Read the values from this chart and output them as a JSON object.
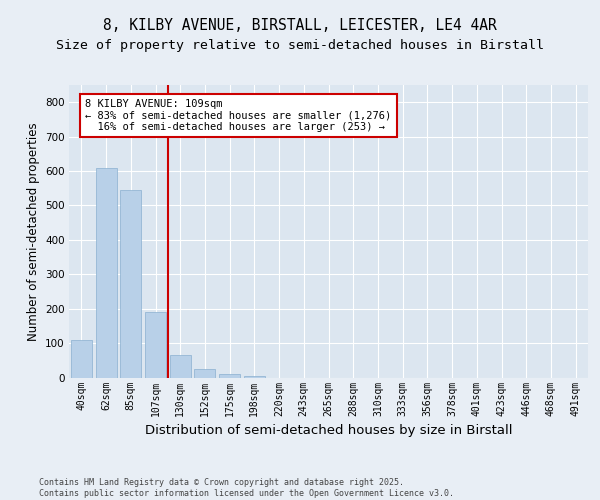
{
  "title1": "8, KILBY AVENUE, BIRSTALL, LEICESTER, LE4 4AR",
  "title2": "Size of property relative to semi-detached houses in Birstall",
  "xlabel": "Distribution of semi-detached houses by size in Birstall",
  "ylabel": "Number of semi-detached properties",
  "categories": [
    "40sqm",
    "62sqm",
    "85sqm",
    "107sqm",
    "130sqm",
    "152sqm",
    "175sqm",
    "198sqm",
    "220sqm",
    "243sqm",
    "265sqm",
    "288sqm",
    "310sqm",
    "333sqm",
    "356sqm",
    "378sqm",
    "401sqm",
    "423sqm",
    "446sqm",
    "468sqm",
    "491sqm"
  ],
  "values": [
    110,
    610,
    545,
    190,
    65,
    25,
    10,
    5,
    0,
    0,
    0,
    0,
    0,
    0,
    0,
    0,
    0,
    0,
    0,
    0,
    0
  ],
  "bar_color": "#b8d0e8",
  "vline_color": "#cc0000",
  "vline_x": 3.5,
  "annotation_line1": "8 KILBY AVENUE: 109sqm",
  "annotation_line2": "← 83% of semi-detached houses are smaller (1,276)",
  "annotation_line3": "  16% of semi-detached houses are larger (253) →",
  "ylim": [
    0,
    850
  ],
  "yticks": [
    0,
    100,
    200,
    300,
    400,
    500,
    600,
    700,
    800
  ],
  "bg_color": "#e8eef5",
  "plot_bg_color": "#dce6f0",
  "grid_color": "#ffffff",
  "footer_line1": "Contains HM Land Registry data © Crown copyright and database right 2025.",
  "footer_line2": "Contains public sector information licensed under the Open Government Licence v3.0.",
  "title1_fontsize": 10.5,
  "title2_fontsize": 9.5,
  "tick_fontsize": 7,
  "ylabel_fontsize": 8.5,
  "xlabel_fontsize": 9.5,
  "annot_fontsize": 7.5,
  "footer_fontsize": 6.0
}
